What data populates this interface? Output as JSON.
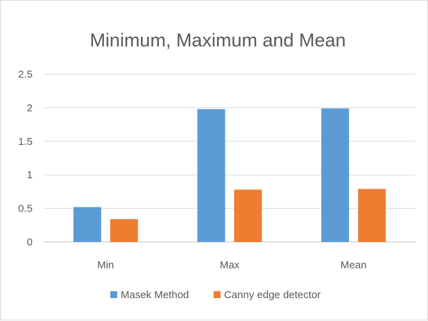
{
  "chart_data": {
    "type": "bar",
    "title": "Minimum, Maximum and Mean",
    "categories": [
      "Min",
      "Max",
      "Mean"
    ],
    "series": [
      {
        "name": "Masek Method",
        "values": [
          0.52,
          1.98,
          1.99
        ],
        "color": "#5b9bd5"
      },
      {
        "name": "Canny edge detector",
        "values": [
          0.34,
          0.78,
          0.79
        ],
        "color": "#ed7d31"
      }
    ],
    "ylim": [
      0,
      2.5
    ],
    "yticks": [
      "0",
      "0.5",
      "1",
      "1.5",
      "2",
      "2.5"
    ],
    "grid": true,
    "legend": "bottom"
  }
}
